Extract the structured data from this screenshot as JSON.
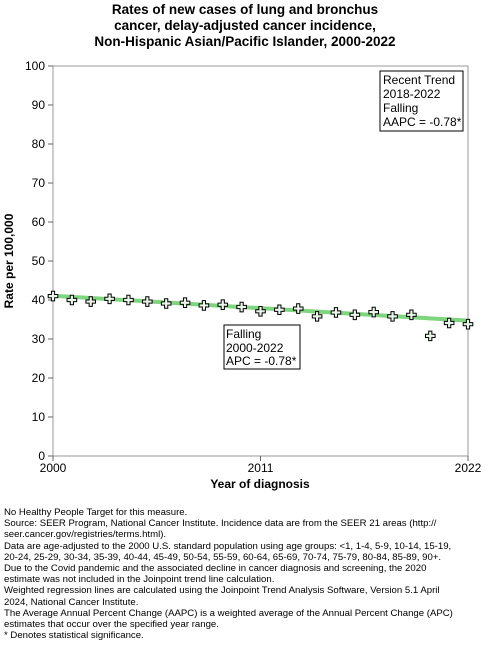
{
  "chart_data": {
    "type": "line",
    "title_lines": [
      "Rates of new cases of lung and bronchus",
      "cancer, delay-adjusted cancer incidence,",
      "Non-Hispanic Asian/Pacific Islander,  2000-2022"
    ],
    "xlabel": "Year of diagnosis",
    "ylabel": "Rate per 100,000",
    "xlim": [
      2000,
      2022
    ],
    "ylim": [
      0,
      100
    ],
    "x_ticks": [
      "2000",
      "2011",
      "2022"
    ],
    "y_ticks": [
      "0",
      "10",
      "20",
      "30",
      "40",
      "50",
      "60",
      "70",
      "80",
      "90",
      "100"
    ],
    "grid": false,
    "series": [
      {
        "x": [
          2000,
          2001,
          2002,
          2003,
          2004,
          2005,
          2006,
          2007,
          2008,
          2009,
          2010,
          2011,
          2012,
          2013,
          2014,
          2015,
          2016,
          2017,
          2018,
          2019,
          2021,
          2022
        ],
        "values": [
          41.0,
          40.0,
          39.6,
          40.3,
          40.0,
          39.6,
          39.1,
          39.3,
          38.6,
          38.8,
          38.2,
          37.1,
          37.5,
          37.8,
          35.8,
          36.8,
          36.2,
          36.9,
          35.8,
          36.2,
          34.1,
          33.8
        ]
      },
      {
        "x": [
          2020
        ],
        "values": [
          30.8
        ]
      },
      {
        "x": [
          2000,
          2022
        ],
        "values": [
          41.1,
          34.7
        ],
        "color": "#7fd47f"
      }
    ],
    "annotations": [
      {
        "lines": [
          "Recent Trend",
          "2018-2022",
          "Falling",
          "AAPC = -0.78*"
        ]
      },
      {
        "lines": [
          "Falling",
          "2000-2022",
          "APC = -0.78*"
        ]
      }
    ]
  },
  "footnotes": [
    "No Healthy People Target for this measure.",
    "Source: SEER Program, National Cancer Institute. Incidence data are from the SEER 21 areas (http://",
    "seer.cancer.gov/registries/terms.html).",
    "Data are age-adjusted to the 2000 U.S. standard population using age groups: <1, 1-4, 5-9, 10-14, 15-19,",
    "20-24, 25-29, 30-34, 35-39, 40-44, 45-49, 50-54, 55-59, 60-64, 65-69, 70-74, 75-79, 80-84, 85-89, 90+.",
    "Due to the Covid pandemic and the associated decline in cancer diagnosis and screening, the 2020",
    "estimate was not included in the Joinpoint trend line calculation.",
    "Weighted regression lines are calculated using the Joinpoint Trend Analysis Software, Version 5.1 April",
    "2024, National Cancer Institute.",
    "The Average Annual Percent Change (AAPC) is a weighted average of the Annual Percent Change (APC)",
    "estimates that occur over the specified year range.",
    "* Denotes statistical significance."
  ]
}
